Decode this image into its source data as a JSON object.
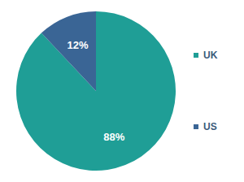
{
  "chart_data": {
    "type": "pie",
    "categories": [
      "UK",
      "US"
    ],
    "values": [
      88,
      12
    ],
    "value_labels": [
      "88%",
      "12%"
    ],
    "colors": [
      "#1f9e96",
      "#3a6595"
    ],
    "data_labels": true,
    "legend": "right"
  }
}
